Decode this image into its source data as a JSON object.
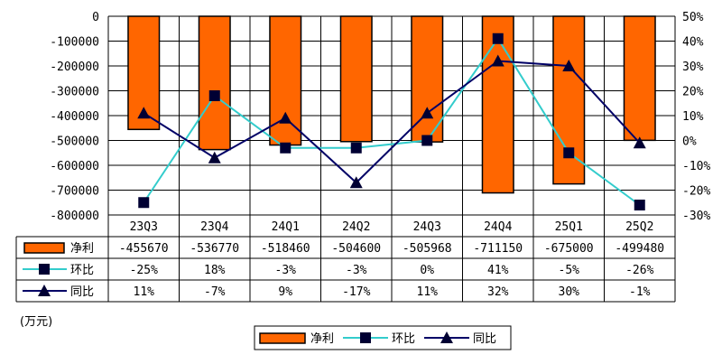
{
  "chart_data": {
    "type": "bar",
    "categories": [
      "23Q3",
      "23Q4",
      "24Q1",
      "24Q2",
      "24Q3",
      "24Q4",
      "25Q1",
      "25Q2"
    ],
    "y_left_lim": [
      -800000,
      0
    ],
    "y_left_ticks": [
      0,
      -100000,
      -200000,
      -300000,
      -400000,
      -500000,
      -600000,
      -700000,
      -800000
    ],
    "y_right_lim": [
      -30,
      50
    ],
    "y_right_ticks": [
      "50%",
      "40%",
      "30%",
      "20%",
      "10%",
      "0%",
      "-10%",
      "-20%",
      "-30%"
    ],
    "unit_label": "(万元)",
    "grid": true,
    "legend_position": "bottom",
    "series": [
      {
        "name": "净利",
        "type": "bar",
        "axis": "left",
        "color": "#FF6600",
        "values": [
          -455670,
          -536770,
          -518460,
          -504600,
          -505968,
          -711150,
          -675000,
          -499480
        ],
        "labels": [
          "-455670",
          "-536770",
          "-518460",
          "-504600",
          "-505968",
          "-711150",
          "-675000",
          "-499480"
        ]
      },
      {
        "name": "环比",
        "type": "line",
        "axis": "right",
        "color": "#33CCCC",
        "marker": "square",
        "values": [
          -25,
          18,
          -3,
          -3,
          0,
          41,
          -5,
          -26
        ],
        "labels": [
          "-25%",
          "18%",
          "-3%",
          "-3%",
          "0%",
          "41%",
          "-5%",
          "-26%"
        ]
      },
      {
        "name": "同比",
        "type": "line",
        "axis": "right",
        "color": "#000066",
        "marker": "triangle",
        "values": [
          11,
          -7,
          9,
          -17,
          11,
          32,
          30,
          -1
        ],
        "labels": [
          "11%",
          "-7%",
          "9%",
          "-17%",
          "11%",
          "32%",
          "30%",
          "-1%"
        ]
      }
    ]
  }
}
